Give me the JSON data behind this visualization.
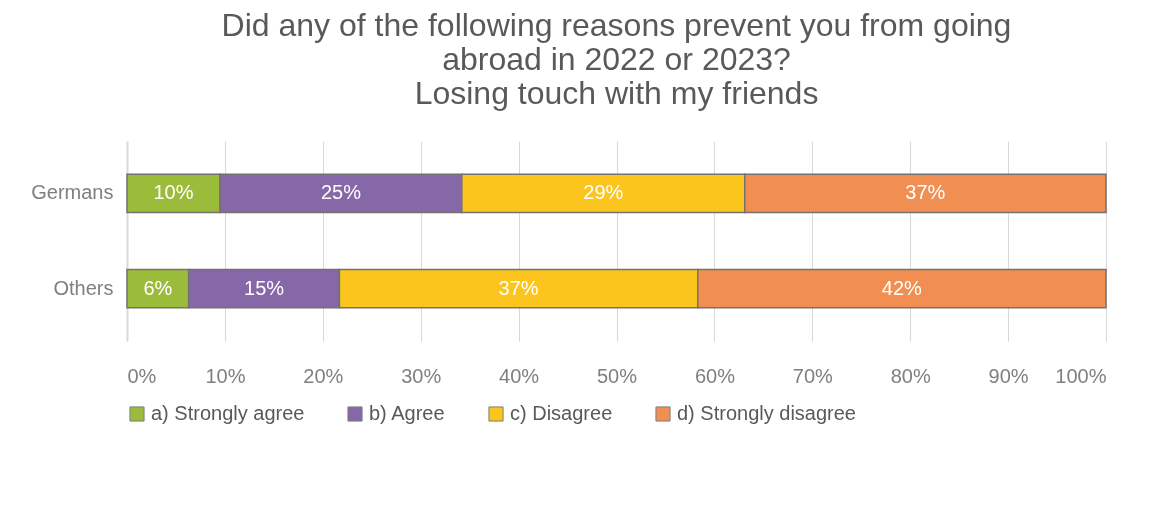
{
  "chart_data": {
    "type": "bar",
    "orientation": "horizontal",
    "stacked": true,
    "title": "Did any of the following reasons prevent you from going\nabroad in 2022 or 2023?\nLosing touch with my friends",
    "categories": [
      "Germans",
      "Others"
    ],
    "series": [
      {
        "name": "a) Strongly agree",
        "color": "#9bbb3b",
        "values": [
          9.5,
          6.3
        ],
        "value_labels": [
          "10%",
          "6%"
        ]
      },
      {
        "name": "b) Agree",
        "color": "#8667a8",
        "values": [
          24.7,
          15.4
        ],
        "value_labels": [
          "25%",
          "15%"
        ]
      },
      {
        "name": "c) Disagree",
        "color": "#fbc51e",
        "values": [
          28.9,
          36.6
        ],
        "value_labels": [
          "29%",
          "37%"
        ]
      },
      {
        "name": "d) Strongly disagree",
        "color": "#f08f51",
        "values": [
          36.9,
          41.7
        ],
        "value_labels": [
          "37%",
          "42%"
        ]
      }
    ],
    "xlim": [
      0,
      100
    ],
    "xticks": [
      {
        "value": 0,
        "label": "0%"
      },
      {
        "value": 10,
        "label": "10%"
      },
      {
        "value": 20,
        "label": "20%"
      },
      {
        "value": 30,
        "label": "30%"
      },
      {
        "value": 40,
        "label": "40%"
      },
      {
        "value": 50,
        "label": "50%"
      },
      {
        "value": 60,
        "label": "60%"
      },
      {
        "value": 70,
        "label": "70%"
      },
      {
        "value": 80,
        "label": "80%"
      },
      {
        "value": 90,
        "label": "90%"
      },
      {
        "value": 100,
        "label": "100%"
      }
    ],
    "grid": "x",
    "legend": "bottom"
  }
}
